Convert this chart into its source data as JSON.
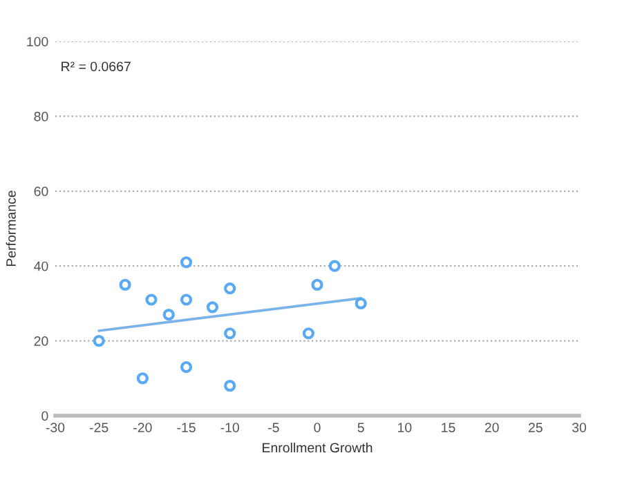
{
  "chart_data": {
    "type": "scatter",
    "xlabel": "Enrollment Growth",
    "ylabel": "Performance",
    "xlim": [
      -30,
      30
    ],
    "xticks": [
      -30,
      -25,
      -20,
      -15,
      -10,
      -5,
      0,
      5,
      10,
      15,
      20,
      25,
      30
    ],
    "ylim": [
      0,
      100
    ],
    "yticks": [
      0,
      20,
      40,
      60,
      80,
      100
    ],
    "grid": "y",
    "marker": "circle",
    "annotations": [
      "R² = 0.0667"
    ],
    "series": [
      {
        "color": "#5aa9f5",
        "x": [
          -25,
          -22,
          -20,
          -19,
          -17,
          -15,
          -15,
          -15,
          -12,
          -10,
          -10,
          -10,
          -1,
          0,
          2,
          5
        ],
        "values": [
          20,
          35,
          10,
          31,
          27,
          41,
          31,
          13,
          29,
          34,
          22,
          8,
          22,
          35,
          40,
          30
        ]
      },
      {
        "type": "line",
        "color": "#7ab3ea",
        "x": [
          -25,
          5
        ],
        "values": [
          22.7,
          31.4
        ],
        "marker": "none"
      }
    ]
  }
}
